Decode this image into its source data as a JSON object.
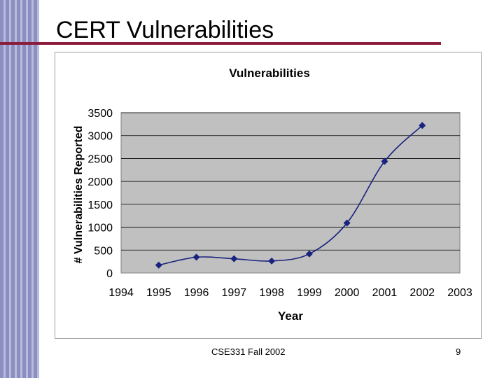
{
  "slide": {
    "title": "CERT Vulnerabilities",
    "footer": "CSE331 Fall 2002",
    "page_number": "9",
    "colors": {
      "stripe": "#8a8ec2",
      "rule": "#8c1c3c",
      "plot_bg": "#c0c0c0",
      "series": "#1a237e"
    }
  },
  "chart_data": {
    "type": "line",
    "title": "Vulnerabilities",
    "xlabel": "Year",
    "ylabel": "# Vulnerabilities Reported",
    "xlim": [
      1994,
      2003
    ],
    "ylim": [
      0,
      3500
    ],
    "x_ticks": [
      1994,
      1995,
      1996,
      1997,
      1998,
      1999,
      2000,
      2001,
      2002,
      2003
    ],
    "y_ticks": [
      0,
      500,
      1000,
      1500,
      2000,
      2500,
      3000,
      3500
    ],
    "grid": true,
    "smoothed": true,
    "series": [
      {
        "x": [
          1995,
          1996,
          1997,
          1998,
          1999,
          2000,
          2001,
          2002
        ],
        "values": [
          171,
          345,
          311,
          262,
          417,
          1090,
          2437,
          3222
        ]
      }
    ]
  }
}
